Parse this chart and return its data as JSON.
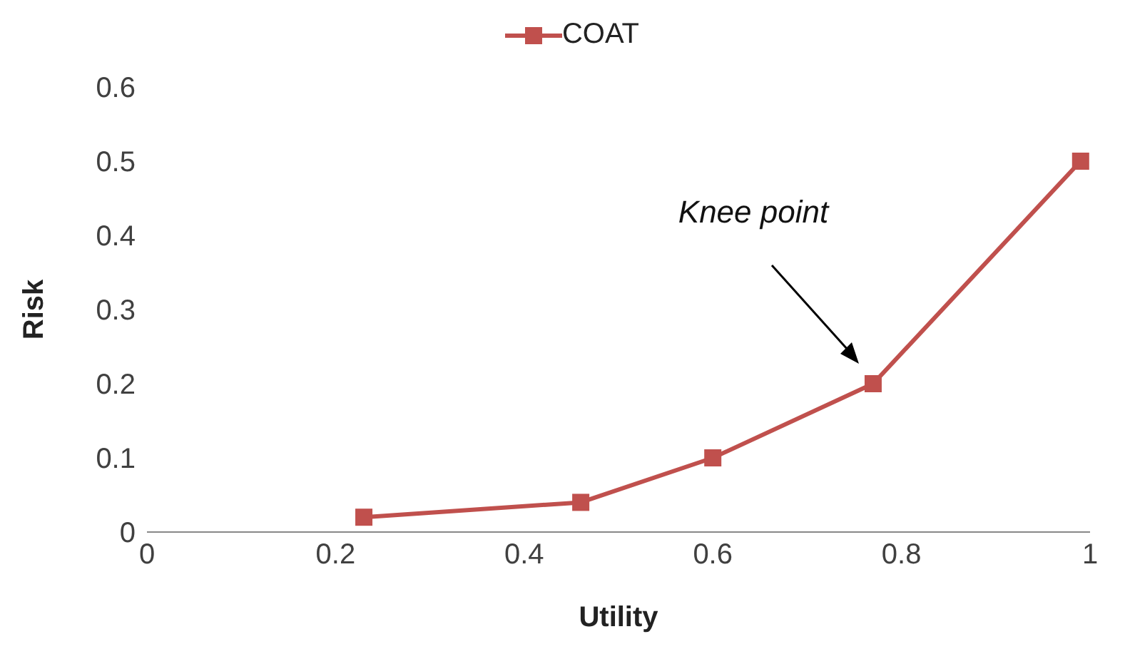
{
  "chart_data": {
    "type": "line",
    "xlabel": "Utility",
    "ylabel": "Risk",
    "x": [
      0.23,
      0.46,
      0.6,
      0.77,
      0.99
    ],
    "series": [
      {
        "name": "COAT",
        "color": "#c0504d",
        "values": [
          0.02,
          0.04,
          0.1,
          0.2,
          0.5
        ]
      }
    ],
    "xlim": [
      0,
      1
    ],
    "xticks": [
      0,
      0.2,
      0.4,
      0.6,
      0.8,
      1
    ],
    "ylim": [
      0,
      0.6
    ],
    "yticks": [
      0,
      0.1,
      0.2,
      0.3,
      0.4,
      0.5,
      0.6
    ],
    "grid": false,
    "legend": "top",
    "marker": "square",
    "line_style": "solid",
    "annotations": [
      "Knee point"
    ]
  }
}
